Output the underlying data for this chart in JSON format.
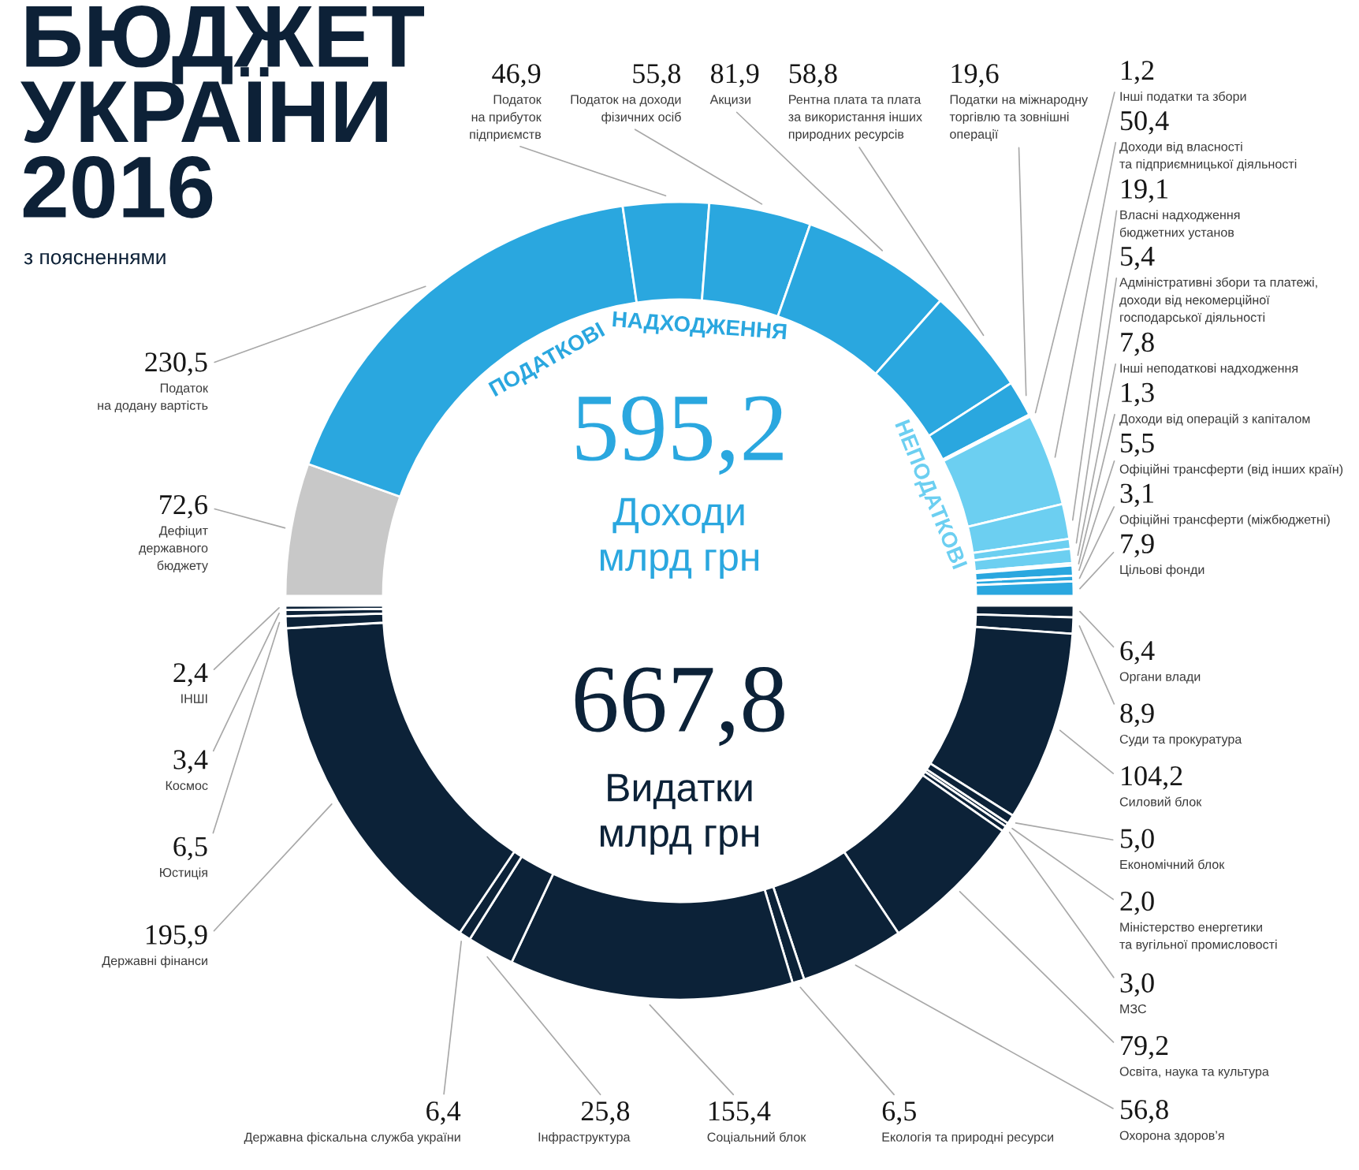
{
  "chart_data": {
    "type": "donut",
    "title": "БЮДЖЕТ\nУКРАЇНИ\n2016",
    "subtitle": "з поясненнями",
    "categories": [
      "Дефіцит\nдержавного\nбюджету",
      "Податок\nна додану вартість",
      "Податок\nна прибуток\nпідприємств",
      "Податок на доходи\nфізичних осіб",
      "Акцизи",
      "Рентна плата та плата\nза використання інших\nприродних ресурсів",
      "Податки на міжнародну\nторгівлю та зовнішні\nоперації",
      "Інші податки та збори",
      "Доходи від власності\nта підприємницької діяльності",
      "Власні надходження\nбюджетних установ",
      "Адміністративні збори та платежі,\nдоходи від некомерційної\nгосподарської діяльності",
      "Інші неподаткові надходження",
      "Доходи від операцій з капіталом",
      "Офіційні трансферти (від інших країн)",
      "Офіційні трансферти (міжбюджетні)",
      "Цільові фонди",
      "Органи влади",
      "Суди та прокуратура",
      "Силовий блок",
      "Економічний блок",
      "Міністерство енергетики\nта вугільної промисловості",
      "МЗС",
      "Освіта, наука та культура",
      "Охорона здоров’я",
      "Екологія та природні ресурси",
      "Соціальний блок",
      "Інфраструктура",
      "Державна фіскальна служба україни",
      "Державні фінанси",
      "Юстиція",
      "Космос",
      "ІНШІ"
    ],
    "values": [
      72.6,
      230.5,
      46.9,
      55.8,
      81.9,
      58.8,
      19.6,
      1.2,
      50.4,
      19.1,
      5.4,
      7.8,
      1.3,
      5.5,
      3.1,
      7.9,
      6.4,
      8.9,
      104.2,
      5.0,
      2.0,
      3.0,
      79.2,
      56.8,
      6.5,
      155.4,
      25.8,
      6.4,
      195.9,
      6.5,
      3.4,
      2.4
    ],
    "value_labels": [
      "72,6",
      "230,5",
      "46,9",
      "55,8",
      "81,9",
      "58,8",
      "19,6",
      "1,2",
      "50,4",
      "19,1",
      "5,4",
      "7,8",
      "1,3",
      "5,5",
      "3,1",
      "7,9",
      "6,4",
      "8,9",
      "104,2",
      "5,0",
      "2,0",
      "3,0",
      "79,2",
      "56,8",
      "6,5",
      "155,4",
      "25,8",
      "6,4",
      "195,9",
      "6,5",
      "3,4",
      "2,4"
    ],
    "colors": [
      "#c8c8c8",
      "#2aa7df",
      "#2aa7df",
      "#2aa7df",
      "#2aa7df",
      "#2aa7df",
      "#2aa7df",
      "#2aa7df",
      "#6ccff1",
      "#6ccff1",
      "#6ccff1",
      "#6ccff1",
      "#6ccff1",
      "#2aa7df",
      "#2aa7df",
      "#2aa7df",
      "#0c2238",
      "#0c2238",
      "#0c2238",
      "#0c2238",
      "#0c2238",
      "#0c2238",
      "#0c2238",
      "#0c2238",
      "#0c2238",
      "#0c2238",
      "#0c2238",
      "#0c2238",
      "#0c2238",
      "#0c2238",
      "#0c2238",
      "#0c2238"
    ],
    "annotations": [
      "595,2",
      "Доходи\nмлрд грн",
      "667,8",
      "Видатки\nмлрд грн",
      "ПОДАТКОВІ НАДХОДЖЕННЯ",
      "НЕПОДАТКОВІ"
    ]
  }
}
